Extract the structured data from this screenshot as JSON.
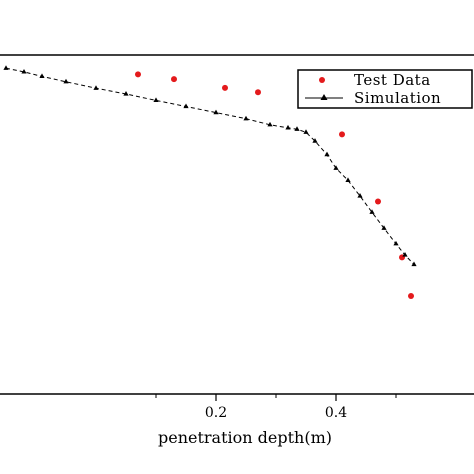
{
  "chart_data": {
    "type": "scatter",
    "xlabel": "penetration depth(m)",
    "ylabel": "",
    "title": "",
    "xlim": [
      -0.16,
      0.63
    ],
    "ylim": [
      0,
      1
    ],
    "x_ticks": [
      {
        "value": 0.2,
        "label": "0.2"
      },
      {
        "value": 0.4,
        "label": "0.4"
      }
    ],
    "x_minor_ticks": [
      0.1,
      0.3,
      0.5
    ],
    "legend": {
      "position": "top-right",
      "entries": [
        {
          "label": "Test Data",
          "marker": "red-dot"
        },
        {
          "label": "Simulation",
          "marker": "black-line-triangle"
        }
      ]
    },
    "series": [
      {
        "name": "Test Data",
        "style": "points",
        "color": "#e41a1c",
        "points": [
          {
            "x": 0.07,
            "y": 0.943
          },
          {
            "x": 0.13,
            "y": 0.929
          },
          {
            "x": 0.215,
            "y": 0.903
          },
          {
            "x": 0.27,
            "y": 0.89
          },
          {
            "x": 0.36,
            "y": 0.87
          },
          {
            "x": 0.41,
            "y": 0.766
          },
          {
            "x": 0.47,
            "y": 0.568
          },
          {
            "x": 0.51,
            "y": 0.403
          },
          {
            "x": 0.525,
            "y": 0.289
          }
        ]
      },
      {
        "name": "Simulation",
        "style": "dashed-line-triangles",
        "color": "#000000",
        "points": [
          {
            "x": -0.15,
            "y": 0.961
          },
          {
            "x": -0.12,
            "y": 0.95
          },
          {
            "x": -0.09,
            "y": 0.937
          },
          {
            "x": -0.05,
            "y": 0.921
          },
          {
            "x": 0.0,
            "y": 0.902
          },
          {
            "x": 0.05,
            "y": 0.885
          },
          {
            "x": 0.1,
            "y": 0.866
          },
          {
            "x": 0.15,
            "y": 0.848
          },
          {
            "x": 0.2,
            "y": 0.83
          },
          {
            "x": 0.25,
            "y": 0.812
          },
          {
            "x": 0.29,
            "y": 0.794
          },
          {
            "x": 0.32,
            "y": 0.785
          },
          {
            "x": 0.335,
            "y": 0.781
          },
          {
            "x": 0.35,
            "y": 0.772
          },
          {
            "x": 0.365,
            "y": 0.746
          },
          {
            "x": 0.385,
            "y": 0.706
          },
          {
            "x": 0.4,
            "y": 0.666
          },
          {
            "x": 0.42,
            "y": 0.63
          },
          {
            "x": 0.44,
            "y": 0.584
          },
          {
            "x": 0.46,
            "y": 0.536
          },
          {
            "x": 0.48,
            "y": 0.489
          },
          {
            "x": 0.5,
            "y": 0.443
          },
          {
            "x": 0.515,
            "y": 0.41
          },
          {
            "x": 0.53,
            "y": 0.382
          }
        ]
      }
    ]
  }
}
